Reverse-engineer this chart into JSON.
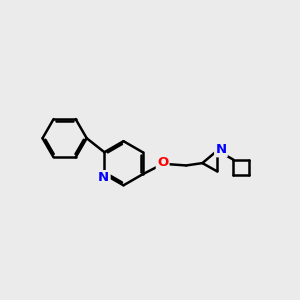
{
  "background_color": "#ebebeb",
  "bond_color": "#000000",
  "nitrogen_color": "#0000ff",
  "oxygen_color": "#ff0000",
  "bond_width": 1.8,
  "figsize": [
    3.0,
    3.0
  ],
  "dpi": 100,
  "xlim": [
    0,
    10
  ],
  "ylim": [
    1,
    8
  ]
}
